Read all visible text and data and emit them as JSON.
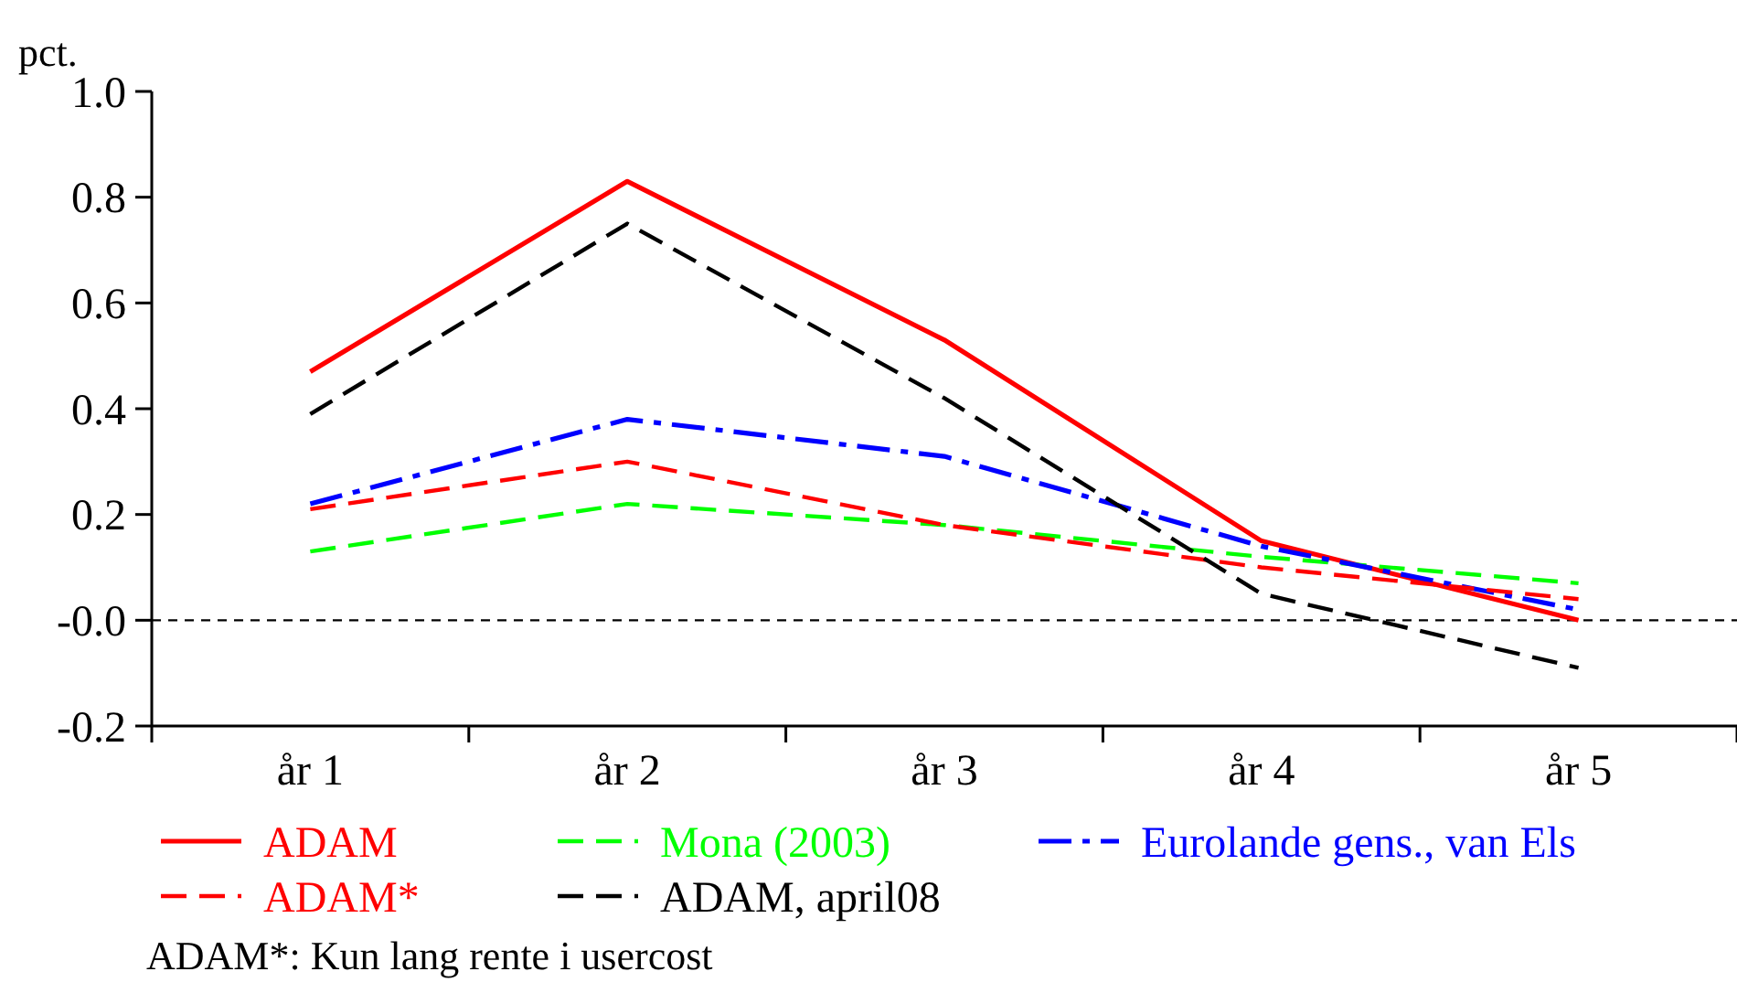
{
  "chart_data": {
    "type": "line",
    "ylabel": "pct.",
    "categories": [
      "år 1",
      "år 2",
      "år 3",
      "år 4",
      "år 5"
    ],
    "ylim": [
      -0.2,
      1.0
    ],
    "yticks": [
      -0.2,
      {
        "value": 0,
        "label": "-0.0"
      },
      0.2,
      0.4,
      0.6,
      0.8,
      {
        "value": 1.0,
        "label": "1.0"
      }
    ],
    "series": [
      {
        "name": "ADAM",
        "color": "#ff0000",
        "line_style": "solid",
        "values": [
          0.47,
          0.83,
          0.53,
          0.15,
          0.0
        ]
      },
      {
        "name": "Mona (2003)",
        "color": "#00ff00",
        "line_style": "dashed",
        "values": [
          0.13,
          0.22,
          0.18,
          0.12,
          0.07
        ]
      },
      {
        "name": "Eurolande gens., van Els",
        "color": "#0000ff",
        "line_style": "dashdot",
        "values": [
          0.22,
          0.38,
          0.31,
          0.14,
          0.02
        ]
      },
      {
        "name": "ADAM*",
        "color": "#ff0000",
        "line_style": "dashed",
        "values": [
          0.21,
          0.3,
          0.18,
          0.1,
          0.04
        ]
      },
      {
        "name": "ADAM, april08",
        "color": "#000000",
        "line_style": "dashed",
        "values": [
          0.39,
          0.75,
          0.42,
          0.05,
          -0.09
        ]
      }
    ],
    "ref_lines": [
      {
        "axis": "y",
        "value": 0,
        "color": "#000000",
        "line_style": "dashed"
      }
    ],
    "legend": "bottom",
    "grid": false,
    "marker": "none",
    "annotations": [
      "ADAM*: Kun lang rente i usercost"
    ]
  }
}
